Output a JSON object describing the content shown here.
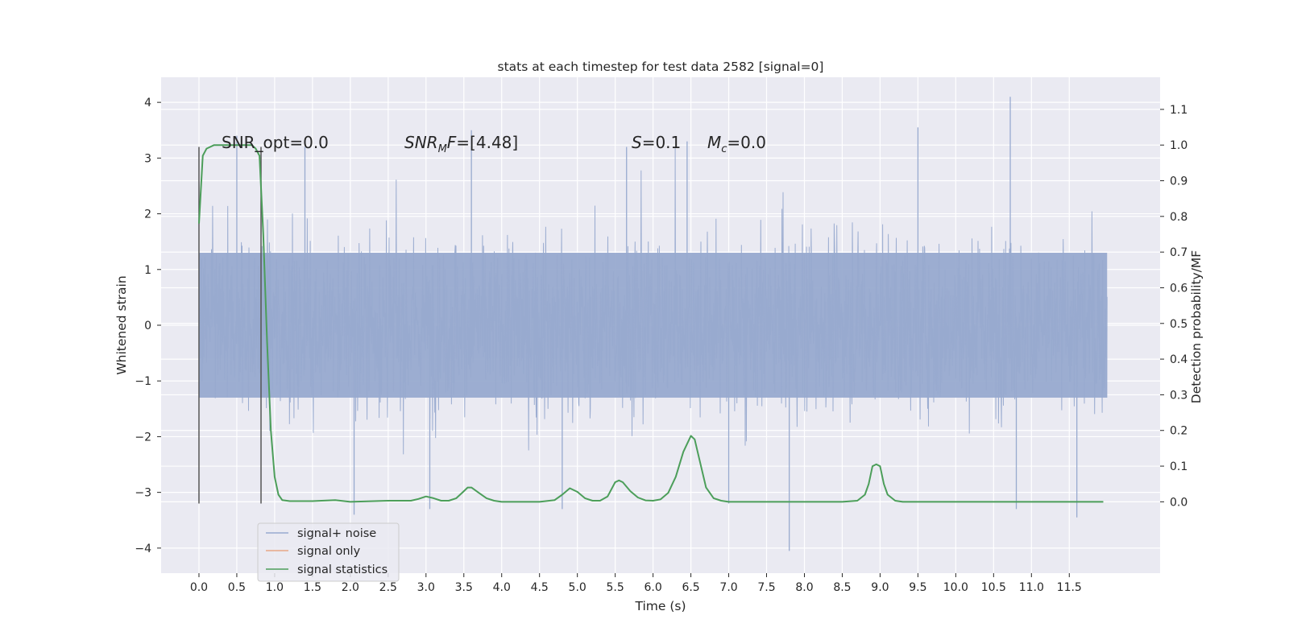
{
  "chart_data": {
    "type": "line",
    "title": "stats at each timestep for test data 2582 [signal=0]",
    "xlabel": "Time (s)",
    "ylabel": "Whitened strain",
    "y2label": "Detection probability/MF",
    "xlim": [
      -0.5,
      12.7
    ],
    "ylim": [
      -4.45,
      4.45
    ],
    "y2lim": [
      -0.2,
      1.19
    ],
    "grid": true,
    "x_ticks": [
      "0.0",
      "0.5",
      "1.0",
      "1.5",
      "2.0",
      "2.5",
      "3.0",
      "3.5",
      "4.0",
      "4.5",
      "5.0",
      "5.5",
      "6.0",
      "6.5",
      "7.0",
      "7.5",
      "8.0",
      "8.5",
      "9.0",
      "9.5",
      "10.0",
      "10.5",
      "11.0",
      "11.5"
    ],
    "y_ticks": [
      "4",
      "3",
      "2",
      "1",
      "0",
      "−1",
      "−2",
      "−3",
      "−4"
    ],
    "y2_ticks": [
      "1.1",
      "1.0",
      "0.9",
      "0.8",
      "0.7",
      "0.6",
      "0.5",
      "0.4",
      "0.3",
      "0.2",
      "0.1",
      "0.0"
    ],
    "annotations": [
      {
        "prefix": "SNR_opt=",
        "value": "0.0"
      },
      {
        "symbol": "SNR",
        "sub": "M",
        "symbol2": "F",
        "value": "=[4.48]"
      },
      {
        "symbol": "S",
        "value": "=0.1"
      },
      {
        "symbol": "M",
        "sub": "c",
        "value": "=0.0"
      }
    ],
    "window_markers_x": [
      0.0,
      0.82
    ],
    "window_markers_ylim": [
      -3.2,
      3.2
    ],
    "noise": {
      "x_range": [
        0.0,
        12.0
      ],
      "amplitude_core": 1.3,
      "peaks_max": 4.1,
      "peaks_min": -4.1
    },
    "series": [
      {
        "name": "signal+ noise",
        "color": "#98aacf",
        "axis": "left"
      },
      {
        "name": "signal only",
        "color": "#e8a886",
        "axis": "left"
      },
      {
        "name": "signal statistics",
        "color": "#4c9e5a",
        "axis": "right",
        "x": [
          0.0,
          0.05,
          0.1,
          0.2,
          0.3,
          0.4,
          0.5,
          0.6,
          0.7,
          0.75,
          0.8,
          0.85,
          0.9,
          0.95,
          1.0,
          1.05,
          1.1,
          1.2,
          1.5,
          1.8,
          2.0,
          2.5,
          2.8,
          2.9,
          3.0,
          3.1,
          3.2,
          3.3,
          3.4,
          3.5,
          3.55,
          3.6,
          3.7,
          3.8,
          3.9,
          4.0,
          4.5,
          4.7,
          4.8,
          4.9,
          5.0,
          5.1,
          5.2,
          5.3,
          5.4,
          5.5,
          5.55,
          5.6,
          5.7,
          5.8,
          5.9,
          6.0,
          6.1,
          6.2,
          6.3,
          6.4,
          6.5,
          6.55,
          6.6,
          6.7,
          6.8,
          6.9,
          7.0,
          7.5,
          8.0,
          8.5,
          8.7,
          8.8,
          8.85,
          8.9,
          8.95,
          9.0,
          9.05,
          9.1,
          9.2,
          9.3,
          9.5,
          10.0,
          10.5,
          11.0,
          11.5,
          11.8,
          11.95
        ],
        "values": [
          0.78,
          0.97,
          0.99,
          1.0,
          1.0,
          1.0,
          1.0,
          1.0,
          1.0,
          0.99,
          0.97,
          0.75,
          0.45,
          0.2,
          0.07,
          0.02,
          0.005,
          0.002,
          0.002,
          0.005,
          0.0,
          0.003,
          0.003,
          0.008,
          0.015,
          0.01,
          0.003,
          0.003,
          0.01,
          0.03,
          0.04,
          0.04,
          0.025,
          0.01,
          0.003,
          0.0,
          0.0,
          0.005,
          0.02,
          0.038,
          0.028,
          0.01,
          0.003,
          0.003,
          0.015,
          0.055,
          0.06,
          0.055,
          0.03,
          0.012,
          0.004,
          0.003,
          0.007,
          0.025,
          0.07,
          0.14,
          0.185,
          0.175,
          0.13,
          0.04,
          0.01,
          0.003,
          0.0,
          0.0,
          0.0,
          0.0,
          0.003,
          0.02,
          0.05,
          0.1,
          0.105,
          0.1,
          0.05,
          0.02,
          0.003,
          0.0,
          0.0,
          0.0,
          0.0,
          0.0,
          0.0,
          0.0,
          0.0
        ]
      }
    ]
  }
}
